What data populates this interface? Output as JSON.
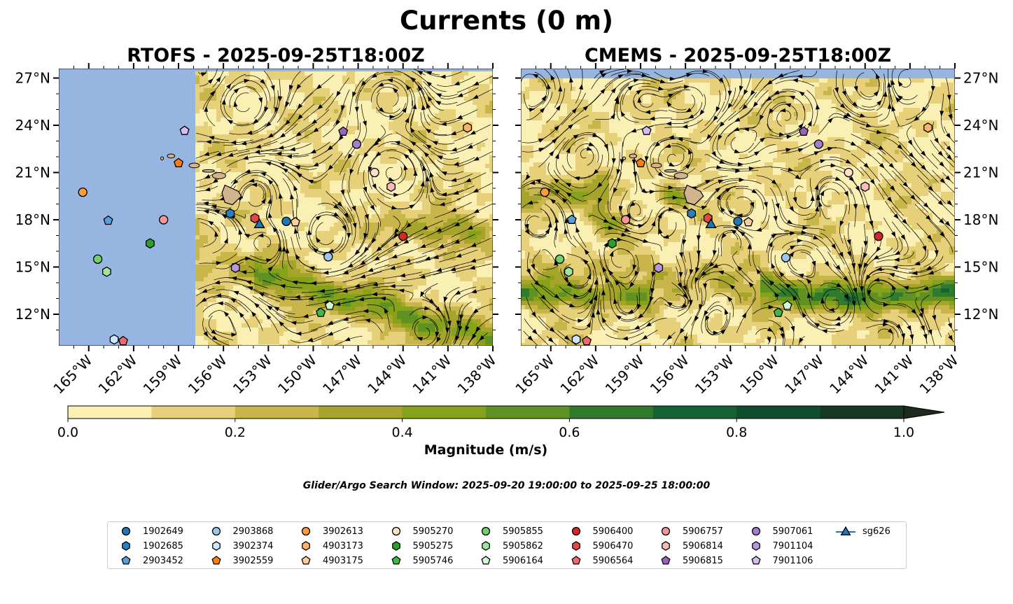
{
  "title": "Currents (0 m)",
  "panels": [
    {
      "id": "rtofs",
      "title": "RTOFS - 2025-09-25T18:00Z"
    },
    {
      "id": "cmems",
      "title": "CMEMS - 2025-09-25T18:00Z"
    }
  ],
  "lat_ticks": [
    "27°N",
    "24°N",
    "21°N",
    "18°N",
    "15°N",
    "12°N"
  ],
  "lon_ticks": [
    "165°W",
    "162°W",
    "159°W",
    "156°W",
    "153°W",
    "150°W",
    "147°W",
    "144°W",
    "141°W",
    "138°W"
  ],
  "colorbar": {
    "label": "Magnitude (m/s)",
    "ticks": [
      "0.0",
      "0.2",
      "0.4",
      "0.6",
      "0.8",
      "1.0"
    ],
    "levels": [
      0.0,
      0.1,
      0.2,
      0.3,
      0.4,
      0.5,
      0.6,
      0.7,
      0.8,
      0.9,
      1.0
    ],
    "colors": [
      "#faf0b4",
      "#e6d07a",
      "#c9b64a",
      "#a6a42a",
      "#86a11a",
      "#5f9123",
      "#2f7a2d",
      "#146235",
      "#0f4d2c",
      "#173823",
      "#1d2a1c"
    ],
    "extend": "max"
  },
  "colors": {
    "land": "#d2b48c",
    "ocean_masked": "#96b5e0"
  },
  "search_window": "Glider/Argo Search Window: 2025-09-20 19:00:00 to 2025-09-25 18:00:00",
  "legend": [
    {
      "label": "1902649",
      "color": "#1f77b4",
      "marker": "circle"
    },
    {
      "label": "1902685",
      "color": "#2a7fbd",
      "marker": "hexagon"
    },
    {
      "label": "2903452",
      "color": "#5aa0d8",
      "marker": "pentagon"
    },
    {
      "label": "2903868",
      "color": "#9ec7ee",
      "marker": "circle"
    },
    {
      "label": "3902374",
      "color": "#cde6fb",
      "marker": "hexagon"
    },
    {
      "label": "3902559",
      "color": "#ff7f0e",
      "marker": "pentagon"
    },
    {
      "label": "3902613",
      "color": "#ff9a3c",
      "marker": "circle"
    },
    {
      "label": "4903173",
      "color": "#ffb06a",
      "marker": "hexagon"
    },
    {
      "label": "4903175",
      "color": "#ffcc9c",
      "marker": "pentagon"
    },
    {
      "label": "5905270",
      "color": "#ffe2c6",
      "marker": "circle"
    },
    {
      "label": "5905275",
      "color": "#2ca02c",
      "marker": "hexagon"
    },
    {
      "label": "5905746",
      "color": "#45b545",
      "marker": "pentagon"
    },
    {
      "label": "5905855",
      "color": "#6fd06f",
      "marker": "circle"
    },
    {
      "label": "5905862",
      "color": "#9fe49f",
      "marker": "hexagon"
    },
    {
      "label": "5906164",
      "color": "#d4f6d4",
      "marker": "pentagon"
    },
    {
      "label": "5906400",
      "color": "#d62728",
      "marker": "circle"
    },
    {
      "label": "5906470",
      "color": "#e34748",
      "marker": "hexagon"
    },
    {
      "label": "5906564",
      "color": "#ef6b6b",
      "marker": "pentagon"
    },
    {
      "label": "5906757",
      "color": "#f59595",
      "marker": "circle"
    },
    {
      "label": "5906814",
      "color": "#fbbaba",
      "marker": "hexagon"
    },
    {
      "label": "5906815",
      "color": "#9467bd",
      "marker": "pentagon"
    },
    {
      "label": "5907061",
      "color": "#a27fcb",
      "marker": "circle"
    },
    {
      "label": "7901104",
      "color": "#b796dc",
      "marker": "hexagon"
    },
    {
      "label": "7901106",
      "color": "#d7bcf4",
      "marker": "pentagon"
    },
    {
      "label": "sg626",
      "color": "#1f77b4",
      "marker": "triangle"
    }
  ],
  "floats": [
    {
      "id": "3902613",
      "lat": 19.75,
      "lon": -165.4,
      "lat_c": 19.75,
      "lon_c": -165.4
    },
    {
      "id": "3902559",
      "lat": 21.6,
      "lon": -159.0,
      "lat_c": 21.6,
      "lon_c": -159.0
    },
    {
      "id": "7901106",
      "lat": 23.65,
      "lon": -158.6,
      "lat_c": 23.65,
      "lon_c": -158.6
    },
    {
      "id": "2903452",
      "lat": 17.95,
      "lon": -163.7,
      "lat_c": 18.0,
      "lon_c": -163.6
    },
    {
      "id": "5906757",
      "lat": 18.0,
      "lon": -160.0,
      "lat_c": 18.0,
      "lon_c": -160.0
    },
    {
      "id": "5905275",
      "lat": 16.5,
      "lon": -160.9,
      "lat_c": 16.5,
      "lon_c": -160.9
    },
    {
      "id": "5905855",
      "lat": 15.5,
      "lon": -164.4,
      "lat_c": 15.5,
      "lon_c": -164.4
    },
    {
      "id": "5905862",
      "lat": 14.7,
      "lon": -163.8,
      "lat_c": 14.7,
      "lon_c": -163.8
    },
    {
      "id": "3902374",
      "lat": 10.4,
      "lon": -163.3,
      "lat_c": 10.4,
      "lon_c": -163.3
    },
    {
      "id": "5906564",
      "lat": 10.3,
      "lon": -162.7,
      "lat_c": 10.3,
      "lon_c": -162.6
    },
    {
      "id": "1902685",
      "lat": 18.4,
      "lon": -155.55,
      "lat_c": 18.4,
      "lon_c": -155.6
    },
    {
      "id": "5906470",
      "lat": 18.1,
      "lon": -153.9,
      "lat_c": 18.1,
      "lon_c": -154.5
    },
    {
      "id": "sg626",
      "lat": 17.75,
      "lon": -153.6,
      "lat_c": 17.75,
      "lon_c": -154.3
    },
    {
      "id": "1902649",
      "lat": 17.9,
      "lon": -151.8,
      "lat_c": 17.9,
      "lon_c": -152.5
    },
    {
      "id": "4903175",
      "lat": 17.85,
      "lon": -151.2,
      "lat_c": 17.85,
      "lon_c": -151.8
    },
    {
      "id": "7901104",
      "lat": 14.95,
      "lon": -155.2,
      "lat_c": 14.95,
      "lon_c": -157.8
    },
    {
      "id": "5906815",
      "lat": 23.6,
      "lon": -148.0,
      "lat_c": 23.6,
      "lon_c": -148.1
    },
    {
      "id": "5907061",
      "lat": 22.8,
      "lon": -147.1,
      "lat_c": 22.8,
      "lon_c": -147.1
    },
    {
      "id": "5905270",
      "lat": 21.0,
      "lon": -145.9,
      "lat_c": 21.0,
      "lon_c": -145.1
    },
    {
      "id": "5906814",
      "lat": 20.1,
      "lon": -144.8,
      "lat_c": 20.1,
      "lon_c": -144.0
    },
    {
      "id": "2903868",
      "lat": 15.65,
      "lon": -149.0,
      "lat_c": 15.6,
      "lon_c": -149.3
    },
    {
      "id": "5906400",
      "lat": 16.95,
      "lon": -144.0,
      "lat_c": 16.95,
      "lon_c": -143.1
    },
    {
      "id": "5906164",
      "lat": 12.55,
      "lon": -148.9,
      "lat_c": 12.55,
      "lon_c": -149.2
    },
    {
      "id": "5905746",
      "lat": 12.1,
      "lon": -149.5,
      "lat_c": 12.1,
      "lon_c": -149.8
    },
    {
      "id": "4903173",
      "lat": 23.85,
      "lon": -139.7,
      "lat_c": 23.85,
      "lon_c": -139.8
    }
  ]
}
